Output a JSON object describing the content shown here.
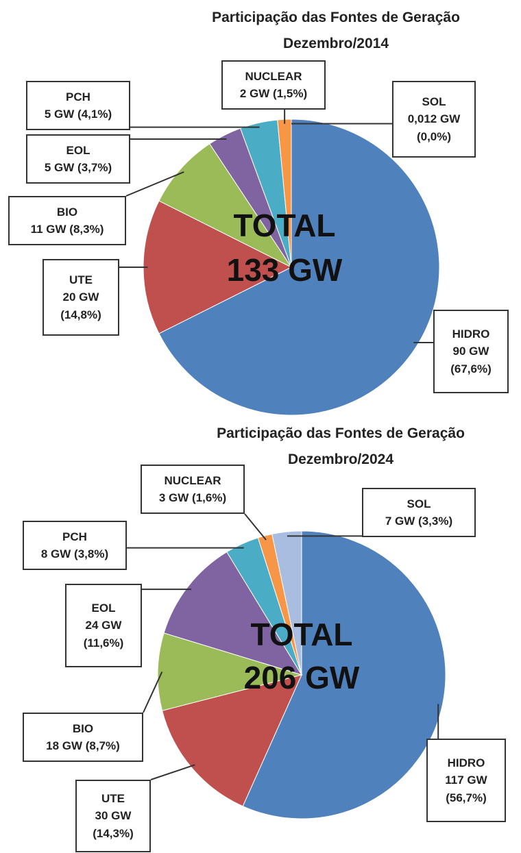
{
  "chart_data": [
    {
      "type": "pie",
      "title": "Participação das Fontes de Geração",
      "subtitle": "Dezembro/2014",
      "annotations": [
        "TOTAL",
        "133 GW"
      ],
      "categories": [
        "HIDRO",
        "UTE",
        "BIO",
        "EOL",
        "PCH",
        "NUCLEAR",
        "SOL"
      ],
      "values": [
        67.6,
        14.8,
        8.3,
        3.7,
        4.1,
        1.5,
        0.0
      ],
      "value_labels": [
        "90 GW (67,6%)",
        "20 GW (14,8%)",
        "11 GW (8,3%)",
        "5 GW (3,7%)",
        "5 GW (4,1%)",
        "2 GW (1,5%)",
        "0,012 GW (0,0%)"
      ],
      "colors": [
        "#4f81bd",
        "#c0504d",
        "#9bbb59",
        "#8064a2",
        "#4bacc6",
        "#f79646",
        "#a9bde0"
      ]
    },
    {
      "type": "pie",
      "title": "Participação das Fontes de Geração",
      "subtitle": "Dezembro/2024",
      "annotations": [
        "TOTAL",
        "206 GW"
      ],
      "categories": [
        "HIDRO",
        "UTE",
        "BIO",
        "EOL",
        "PCH",
        "NUCLEAR",
        "SOL"
      ],
      "values": [
        56.7,
        14.3,
        8.7,
        11.6,
        3.8,
        1.6,
        3.3
      ],
      "value_labels": [
        "117 GW (56,7%)",
        "30 GW (14,3%)",
        "18 GW (8,7%)",
        "24 GW (11,6%)",
        "8 GW (3,8%)",
        "3 GW (1,6%)",
        "7 GW (3,3%)"
      ],
      "colors": [
        "#4f81bd",
        "#c0504d",
        "#9bbb59",
        "#8064a2",
        "#4bacc6",
        "#f79646",
        "#a9bde0"
      ]
    }
  ]
}
